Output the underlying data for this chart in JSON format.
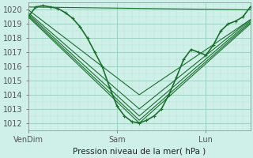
{
  "title": "Pression niveau de la mer( hPa )",
  "background_color": "#cff0e8",
  "plot_bg_color": "#cff0e8",
  "grid_color_major": "#99ccbb",
  "grid_color_minor": "#bbddcc",
  "line_color": "#1a6e2e",
  "ylim": [
    1011.5,
    1020.5
  ],
  "yticks": [
    1012,
    1013,
    1014,
    1015,
    1016,
    1017,
    1018,
    1019,
    1020
  ],
  "xtick_labels": [
    "VenDim",
    "Sam",
    "Lun"
  ],
  "xtick_positions": [
    0,
    96,
    192
  ],
  "xlim": [
    0,
    240
  ],
  "series": [
    {
      "x": [
        0,
        8,
        16,
        24,
        32,
        40,
        48,
        56,
        64,
        72,
        80,
        88,
        96,
        104,
        112,
        120,
        128,
        136,
        144,
        152,
        160,
        168,
        176,
        184,
        192,
        200,
        208,
        216,
        224,
        232,
        240
      ],
      "y": [
        1019.5,
        1020.2,
        1020.3,
        1020.2,
        1020.1,
        1019.8,
        1019.4,
        1018.8,
        1018.0,
        1017.0,
        1016.0,
        1014.5,
        1013.2,
        1012.5,
        1012.1,
        1012.0,
        1012.2,
        1012.5,
        1013.0,
        1014.0,
        1015.2,
        1016.5,
        1017.2,
        1017.0,
        1016.8,
        1017.5,
        1018.5,
        1019.0,
        1019.2,
        1019.5,
        1020.2
      ],
      "has_markers": true,
      "linewidth": 1.2
    },
    {
      "x": [
        0,
        120,
        240
      ],
      "y": [
        1019.5,
        1012.0,
        1019.0
      ],
      "has_markers": false,
      "linewidth": 0.8
    },
    {
      "x": [
        0,
        120,
        240
      ],
      "y": [
        1019.6,
        1012.2,
        1019.1
      ],
      "has_markers": false,
      "linewidth": 0.8
    },
    {
      "x": [
        0,
        120,
        240
      ],
      "y": [
        1019.7,
        1012.5,
        1019.2
      ],
      "has_markers": false,
      "linewidth": 0.8
    },
    {
      "x": [
        0,
        120,
        240
      ],
      "y": [
        1019.8,
        1013.0,
        1019.3
      ],
      "has_markers": false,
      "linewidth": 0.8
    },
    {
      "x": [
        0,
        120,
        240
      ],
      "y": [
        1020.0,
        1014.0,
        1019.3
      ],
      "has_markers": false,
      "linewidth": 0.8
    },
    {
      "x": [
        0,
        240
      ],
      "y": [
        1020.2,
        1020.0
      ],
      "has_markers": false,
      "linewidth": 0.8
    }
  ]
}
